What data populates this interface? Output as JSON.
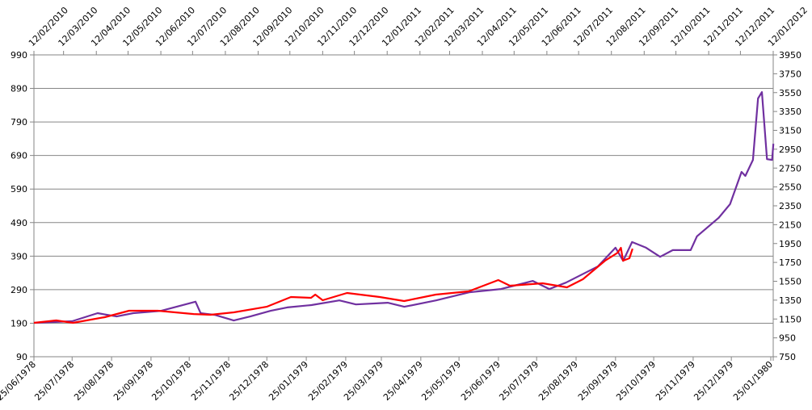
{
  "chart_data": {
    "type": "line",
    "grid": true,
    "colors": {
      "purple": "#7030A0",
      "red": "#FF0000",
      "grid": "#868686"
    },
    "y_left": {
      "range": [
        90,
        990
      ],
      "ticks": [
        90,
        190,
        290,
        390,
        490,
        590,
        690,
        790,
        890,
        990
      ]
    },
    "y_right": {
      "range": [
        750,
        3950
      ],
      "ticks": [
        750,
        950,
        1150,
        1350,
        1550,
        1750,
        1950,
        2150,
        2350,
        2550,
        2750,
        2950,
        3150,
        3350,
        3550,
        3750,
        3950
      ]
    },
    "x_bottom": {
      "range": [
        "1978-06-25",
        "1980-01-27"
      ],
      "tick_labels": [
        "25/06/1978",
        "25/07/1978",
        "25/08/1978",
        "25/09/1978",
        "25/10/1978",
        "25/11/1978",
        "25/12/1978",
        "25/01/1979",
        "25/02/1979",
        "25/03/1979",
        "25/04/1979",
        "25/05/1979",
        "25/06/1979",
        "25/07/1979",
        "25/08/1979",
        "25/09/1979",
        "25/10/1979",
        "25/11/1979",
        "25/12/1979",
        "25/01/1980"
      ]
    },
    "x_top": {
      "range": [
        "2010-02-12",
        "2012-01-12"
      ],
      "tick_labels": [
        "12/02/2010",
        "12/03/2010",
        "12/04/2010",
        "12/05/2010",
        "12/06/2010",
        "12/07/2010",
        "12/08/2010",
        "12/09/2010",
        "12/10/2010",
        "12/11/2010",
        "12/12/2010",
        "12/01/2011",
        "12/02/2011",
        "12/03/2011",
        "12/04/2011",
        "12/05/2011",
        "12/06/2011",
        "12/07/2011",
        "12/08/2011",
        "12/09/2011",
        "12/10/2011",
        "12/11/2011",
        "12/12/2011",
        "12/01/2012"
      ]
    },
    "series": [
      {
        "color": "#7030A0",
        "x_axis": "bottom",
        "y_axis": "left",
        "points": [
          [
            "1978-06-25",
            191
          ],
          [
            "1978-07-25",
            196
          ],
          [
            "1978-08-14",
            220
          ],
          [
            "1978-08-29",
            210
          ],
          [
            "1978-09-11",
            220
          ],
          [
            "1978-10-03",
            227
          ],
          [
            "1978-10-30",
            254
          ],
          [
            "1978-11-03",
            220
          ],
          [
            "1978-11-14",
            215
          ],
          [
            "1978-11-29",
            198
          ],
          [
            "1978-12-12",
            210
          ],
          [
            "1978-12-28",
            227
          ],
          [
            "1979-01-10",
            237
          ],
          [
            "1979-01-29",
            244
          ],
          [
            "1979-02-20",
            258
          ],
          [
            "1979-03-05",
            246
          ],
          [
            "1979-03-30",
            251
          ],
          [
            "1979-04-12",
            239
          ],
          [
            "1979-05-07",
            258
          ],
          [
            "1979-06-02",
            282
          ],
          [
            "1979-06-27",
            292
          ],
          [
            "1979-07-22",
            316
          ],
          [
            "1979-08-04",
            292
          ],
          [
            "1979-08-17",
            311
          ],
          [
            "1979-09-11",
            359
          ],
          [
            "1979-09-25",
            415
          ],
          [
            "1979-10-01",
            376
          ],
          [
            "1979-10-08",
            432
          ],
          [
            "1979-10-19",
            415
          ],
          [
            "1979-10-30",
            388
          ],
          [
            "1979-11-09",
            408
          ],
          [
            "1979-11-23",
            408
          ],
          [
            "1979-11-28",
            449
          ],
          [
            "1979-12-15",
            504
          ],
          [
            "1979-12-24",
            545
          ],
          [
            "1980-01-02",
            641
          ],
          [
            "1980-01-05",
            629
          ],
          [
            "1980-01-11",
            677
          ],
          [
            "1980-01-15",
            860
          ],
          [
            "1980-01-18",
            879
          ],
          [
            "1980-01-22",
            679
          ],
          [
            "1980-01-26",
            677
          ],
          [
            "1980-01-27",
            725
          ]
        ]
      },
      {
        "color": "#FF0000",
        "x_axis": "top",
        "y_axis": "right",
        "points": [
          [
            "2010-02-12",
            1109
          ],
          [
            "2010-03-05",
            1135
          ],
          [
            "2010-03-21",
            1109
          ],
          [
            "2010-04-20",
            1169
          ],
          [
            "2010-05-13",
            1238
          ],
          [
            "2010-06-09",
            1238
          ],
          [
            "2010-07-13",
            1203
          ],
          [
            "2010-07-29",
            1195
          ],
          [
            "2010-08-20",
            1221
          ],
          [
            "2010-09-20",
            1280
          ],
          [
            "2010-10-13",
            1383
          ],
          [
            "2010-11-01",
            1375
          ],
          [
            "2010-11-05",
            1409
          ],
          [
            "2010-11-12",
            1349
          ],
          [
            "2010-12-05",
            1426
          ],
          [
            "2011-01-05",
            1383
          ],
          [
            "2011-01-28",
            1340
          ],
          [
            "2011-02-27",
            1409
          ],
          [
            "2011-03-30",
            1443
          ],
          [
            "2011-04-27",
            1563
          ],
          [
            "2011-05-08",
            1503
          ],
          [
            "2011-06-08",
            1529
          ],
          [
            "2011-07-01",
            1486
          ],
          [
            "2011-07-16",
            1571
          ],
          [
            "2011-08-06",
            1768
          ],
          [
            "2011-08-18",
            1854
          ],
          [
            "2011-08-21",
            1905
          ],
          [
            "2011-08-23",
            1768
          ],
          [
            "2011-08-29",
            1794
          ],
          [
            "2011-09-01",
            1896
          ]
        ]
      }
    ]
  }
}
